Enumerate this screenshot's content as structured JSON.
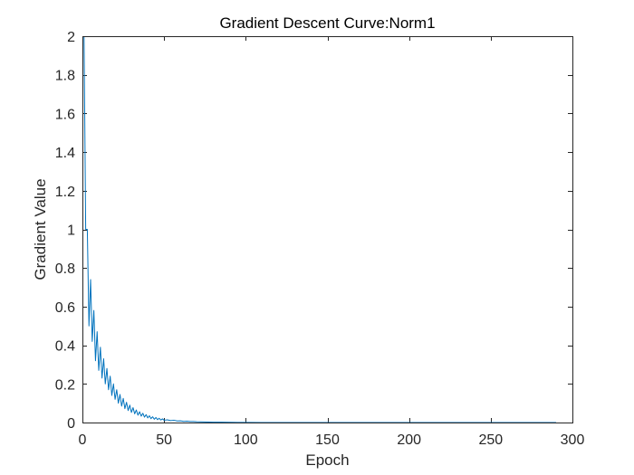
{
  "chart_data": {
    "type": "line",
    "title": "Gradient Descent Curve:Norm1",
    "xlabel": "Epoch",
    "ylabel": "Gradient Value",
    "xlim": [
      0,
      300
    ],
    "ylim": [
      0,
      2
    ],
    "xticks": [
      0,
      50,
      100,
      150,
      200,
      250,
      300
    ],
    "xtick_labels": [
      "0",
      "50",
      "100",
      "150",
      "200",
      "250",
      "300"
    ],
    "yticks": [
      0,
      0.2,
      0.4,
      0.6,
      0.8,
      1,
      1.2,
      1.4,
      1.6,
      1.8,
      2
    ],
    "ytick_labels": [
      "0",
      "0.2",
      "0.4",
      "0.6",
      "0.8",
      "1",
      "1.2",
      "1.4",
      "1.6",
      "1.8",
      "2"
    ],
    "grid": false,
    "series": [
      {
        "color": "#0072BD",
        "x": [
          1,
          2,
          3,
          4,
          5,
          6,
          7,
          8,
          9,
          10,
          11,
          12,
          13,
          14,
          15,
          16,
          17,
          18,
          19,
          20,
          21,
          22,
          23,
          24,
          25,
          26,
          27,
          28,
          29,
          30,
          31,
          32,
          33,
          34,
          35,
          36,
          37,
          38,
          39,
          40,
          41,
          42,
          43,
          44,
          45,
          46,
          47,
          48,
          49,
          50,
          52,
          54,
          56,
          58,
          60,
          62,
          64,
          66,
          68,
          70,
          75,
          80,
          85,
          90,
          95,
          100,
          110,
          120,
          130,
          140,
          150,
          175,
          200,
          225,
          250,
          275,
          290
        ],
        "y": [
          2.0,
          1.0,
          1.0,
          0.5,
          0.74,
          0.42,
          0.58,
          0.32,
          0.47,
          0.27,
          0.39,
          0.23,
          0.33,
          0.2,
          0.28,
          0.17,
          0.24,
          0.14,
          0.2,
          0.12,
          0.17,
          0.1,
          0.145,
          0.085,
          0.125,
          0.072,
          0.105,
          0.062,
          0.09,
          0.052,
          0.077,
          0.045,
          0.065,
          0.038,
          0.056,
          0.033,
          0.048,
          0.028,
          0.041,
          0.024,
          0.035,
          0.02,
          0.03,
          0.017,
          0.026,
          0.015,
          0.022,
          0.013,
          0.019,
          0.012,
          0.014,
          0.01,
          0.012,
          0.008,
          0.009,
          0.006,
          0.007,
          0.005,
          0.005,
          0.004,
          0.003,
          0.002,
          0.0015,
          0.001,
          0.0008,
          0.0006,
          0.0003,
          0.0002,
          0.0001,
          0.0001,
          0.0001,
          5e-05,
          3e-05,
          2e-05,
          1e-05,
          1e-05,
          1e-05
        ]
      }
    ]
  }
}
